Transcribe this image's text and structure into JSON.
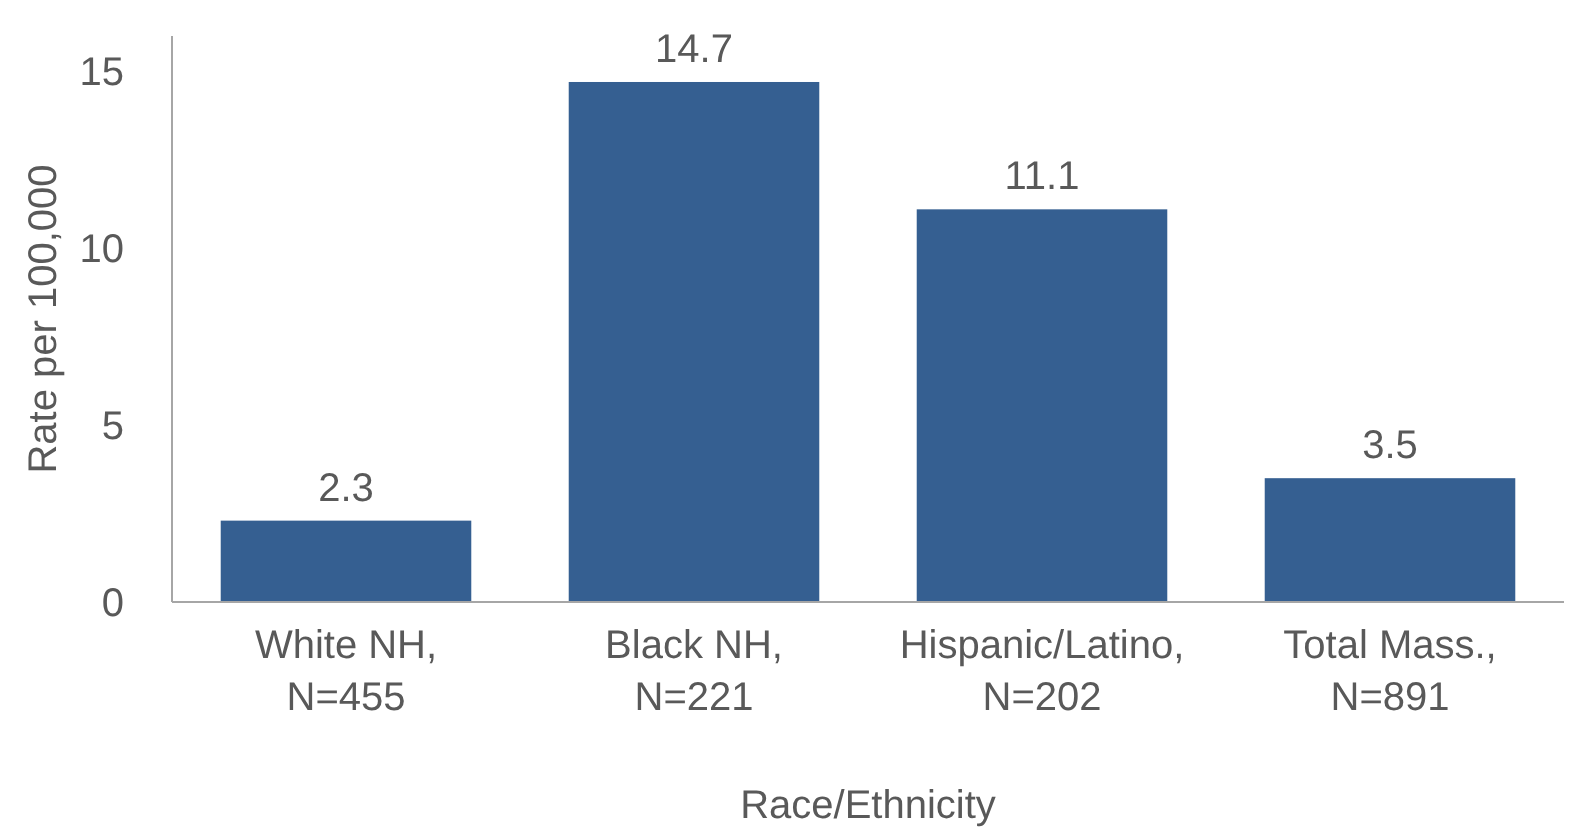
{
  "chart_data": {
    "type": "bar",
    "xlabel": "Race/Ethnicity",
    "ylabel": "Rate per 100,000",
    "categories": [
      "White NH,\nN=455",
      "Black NH,\nN=221",
      "Hispanic/Latino,\nN=202",
      "Total Mass.,\nN=891"
    ],
    "values": [
      2.3,
      14.7,
      11.1,
      3.5
    ],
    "color": "#355f91",
    "data_labels": true,
    "ylim": [
      0,
      16
    ],
    "yticks": [
      0,
      5,
      10,
      15
    ],
    "grid": false
  }
}
